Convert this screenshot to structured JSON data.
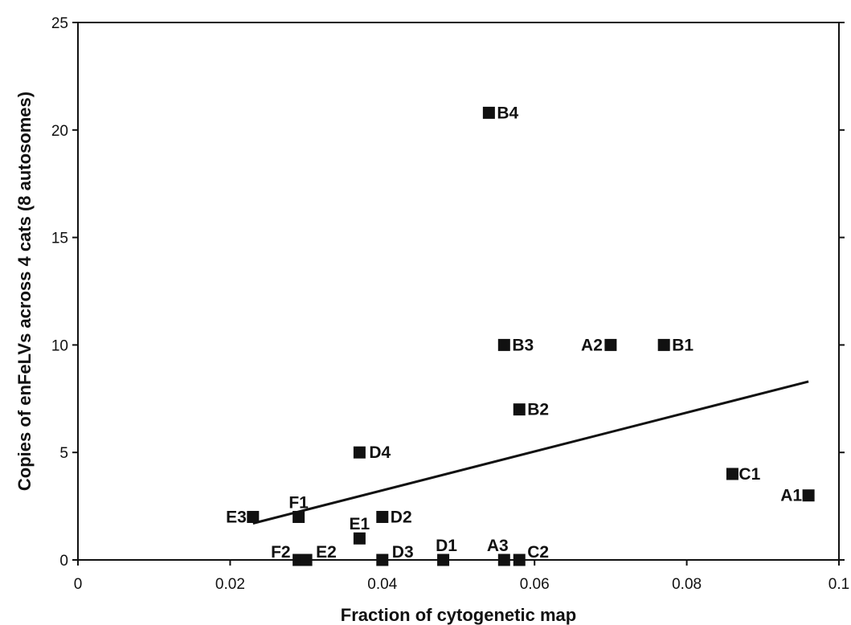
{
  "chart_data": {
    "type": "scatter",
    "xlabel": "Fraction of cytogenetic map",
    "ylabel": "Copies of enFeLVs across 4 cats (8 autosomes)",
    "xlim": [
      0,
      0.1
    ],
    "ylim": [
      0,
      25
    ],
    "xticks": [
      0,
      0.02,
      0.04,
      0.06,
      0.08,
      0.1
    ],
    "xtick_labels": [
      "0",
      "0.02",
      "0.04",
      "0.06",
      "0.08",
      "0.1"
    ],
    "yticks": [
      0,
      5,
      10,
      15,
      20,
      25
    ],
    "ytick_labels": [
      "0",
      "5",
      "10",
      "15",
      "20",
      "25"
    ],
    "grid": false,
    "legend": false,
    "marker": "square",
    "marker_color": "#111111",
    "points": [
      {
        "label": "B4",
        "x": 0.054,
        "y": 20.8
      },
      {
        "label": "B3",
        "x": 0.056,
        "y": 10
      },
      {
        "label": "A2",
        "x": 0.07,
        "y": 10
      },
      {
        "label": "B1",
        "x": 0.077,
        "y": 10
      },
      {
        "label": "B2",
        "x": 0.058,
        "y": 7
      },
      {
        "label": "D4",
        "x": 0.037,
        "y": 5
      },
      {
        "label": "C1",
        "x": 0.086,
        "y": 4
      },
      {
        "label": "A1",
        "x": 0.096,
        "y": 3
      },
      {
        "label": "E3",
        "x": 0.023,
        "y": 2
      },
      {
        "label": "F1",
        "x": 0.029,
        "y": 2
      },
      {
        "label": "D2",
        "x": 0.04,
        "y": 2
      },
      {
        "label": "E1",
        "x": 0.037,
        "y": 1
      },
      {
        "label": "F2",
        "x": 0.029,
        "y": 0
      },
      {
        "label": "E2",
        "x": 0.03,
        "y": 0
      },
      {
        "label": "D3",
        "x": 0.04,
        "y": 0
      },
      {
        "label": "D1",
        "x": 0.048,
        "y": 0
      },
      {
        "label": "A3",
        "x": 0.056,
        "y": 0
      },
      {
        "label": "C2",
        "x": 0.058,
        "y": 0
      }
    ],
    "trendline": {
      "type": "linear",
      "x": [
        0.023,
        0.096
      ],
      "y": [
        1.7,
        8.3
      ]
    }
  }
}
